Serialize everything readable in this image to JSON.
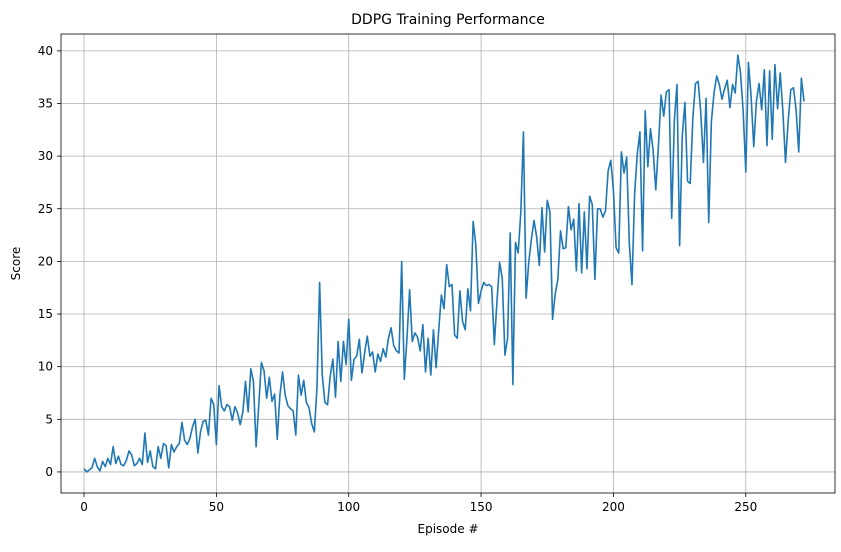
{
  "chart_data": {
    "type": "line",
    "title": "DDPG Training Performance",
    "xlabel": "Episode #",
    "ylabel": "Score",
    "xlim": [
      -8.7,
      283.7
    ],
    "ylim": [
      -2.0,
      41.6
    ],
    "xticks": [
      0,
      50,
      100,
      150,
      200,
      250
    ],
    "yticks": [
      0,
      5,
      10,
      15,
      20,
      25,
      30,
      35,
      40
    ],
    "grid": true,
    "legend": "none",
    "series": [
      {
        "color": "#1f77b4",
        "x_start": 0,
        "values": [
          0.3,
          0.0,
          0.2,
          0.4,
          1.3,
          0.5,
          0.1,
          1.0,
          0.5,
          1.3,
          0.7,
          2.4,
          0.8,
          1.5,
          0.7,
          0.6,
          1.1,
          2.0,
          1.6,
          0.6,
          0.8,
          1.3,
          0.7,
          3.7,
          0.9,
          2.0,
          0.5,
          0.3,
          2.4,
          1.3,
          2.7,
          2.5,
          0.4,
          2.6,
          1.9,
          2.4,
          2.7,
          4.7,
          3.0,
          2.6,
          3.2,
          4.3,
          5.0,
          1.8,
          3.8,
          4.8,
          4.9,
          3.5,
          7.0,
          6.4,
          2.6,
          8.2,
          6.2,
          5.8,
          6.4,
          6.2,
          4.9,
          6.2,
          5.6,
          4.5,
          5.7,
          8.6,
          5.7,
          9.8,
          8.6,
          2.4,
          6.3,
          10.4,
          9.6,
          7.0,
          9.0,
          6.7,
          7.4,
          3.1,
          7.3,
          9.5,
          7.3,
          6.3,
          6.0,
          5.8,
          3.5,
          9.2,
          7.3,
          8.7,
          6.6,
          6.1,
          4.6,
          3.8,
          8.0,
          18.0,
          9.2,
          6.6,
          6.4,
          9.1,
          10.7,
          7.1,
          12.4,
          8.6,
          12.4,
          10.2,
          14.5,
          8.7,
          10.7,
          11.0,
          12.6,
          9.4,
          11.3,
          12.9,
          11.0,
          11.4,
          9.5,
          11.2,
          10.5,
          11.7,
          10.9,
          12.7,
          13.7,
          12.0,
          11.5,
          11.3,
          20.0,
          8.8,
          12.7,
          17.3,
          12.4,
          13.2,
          12.8,
          11.5,
          14.0,
          9.5,
          12.7,
          9.2,
          13.5,
          9.9,
          13.5,
          16.8,
          15.5,
          19.7,
          17.6,
          17.8,
          13.0,
          12.7,
          17.2,
          14.3,
          13.5,
          17.4,
          15.3,
          23.8,
          21.6,
          16.0,
          17.2,
          18.0,
          17.7,
          17.8,
          17.6,
          12.1,
          16.2,
          19.9,
          18.4,
          11.1,
          12.7,
          22.7,
          8.3,
          21.8,
          20.8,
          24.6,
          32.3,
          16.5,
          19.9,
          22.1,
          23.9,
          22.3,
          19.6,
          25.1,
          20.9,
          25.8,
          24.7,
          14.5,
          16.9,
          18.3,
          22.9,
          21.2,
          21.3,
          25.2,
          23.0,
          24.0,
          19.1,
          25.5,
          18.9,
          24.7,
          19.3,
          26.2,
          25.4,
          18.3,
          25.0,
          25.0,
          24.2,
          24.8,
          28.6,
          29.6,
          26.7,
          21.3,
          20.8,
          30.4,
          28.4,
          29.9,
          21.7,
          17.8,
          26.4,
          30.2,
          32.3,
          21.0,
          34.3,
          29.0,
          32.6,
          30.5,
          26.8,
          31.0,
          35.8,
          33.8,
          36.1,
          36.3,
          24.1,
          33.3,
          36.8,
          21.5,
          31.9,
          35.1,
          27.6,
          27.4,
          33.6,
          36.9,
          37.1,
          34.1,
          29.4,
          35.5,
          23.7,
          33.3,
          36.0,
          37.6,
          36.8,
          35.4,
          36.4,
          37.2,
          34.6,
          36.8,
          36.0,
          39.6,
          37.9,
          34.3,
          28.5,
          38.9,
          35.7,
          30.9,
          35.2,
          36.9,
          34.4,
          38.2,
          31.0,
          38.1,
          31.6,
          38.7,
          34.5,
          37.9,
          34.3,
          29.4,
          33.3,
          36.3,
          36.5,
          34.4,
          30.4,
          37.4,
          35.2
        ]
      }
    ]
  }
}
